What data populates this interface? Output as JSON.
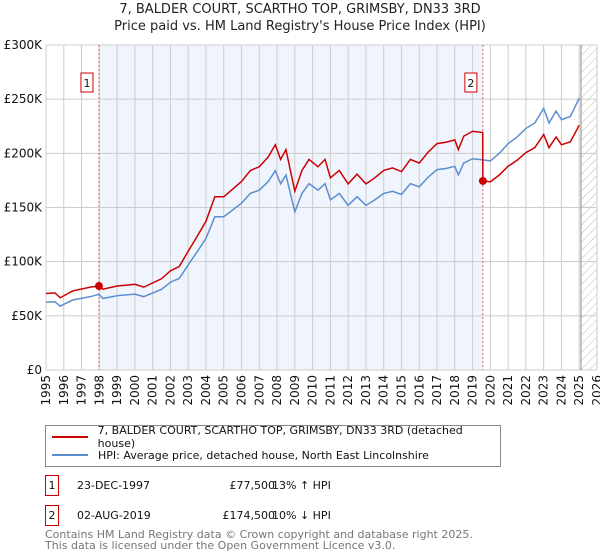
{
  "header": {
    "title": "7, BALDER COURT, SCARTHO TOP, GRIMSBY, DN33 3RD",
    "subtitle": "Price paid vs. HM Land Registry's House Price Index (HPI)"
  },
  "chart_data": {
    "type": "line",
    "title": "7, BALDER COURT, SCARTHO TOP, GRIMSBY, DN33 3RD",
    "subtitle": "Price paid vs. HM Land Registry's House Price Index (HPI)",
    "xlim": [
      1995,
      2026
    ],
    "ylim": [
      0,
      300000
    ],
    "x_ticks": [
      "1995",
      "1996",
      "1997",
      "1998",
      "1999",
      "2000",
      "2001",
      "2002",
      "2003",
      "2004",
      "2005",
      "2006",
      "2007",
      "2008",
      "2009",
      "2010",
      "2011",
      "2012",
      "2013",
      "2014",
      "2015",
      "2016",
      "2017",
      "2018",
      "2019",
      "2020",
      "2021",
      "2022",
      "2023",
      "2024",
      "2025",
      "2026"
    ],
    "y_ticks": [
      {
        "v": 0,
        "label": "£0"
      },
      {
        "v": 50000,
        "label": "£50K"
      },
      {
        "v": 100000,
        "label": "£100K"
      },
      {
        "v": 150000,
        "label": "£150K"
      },
      {
        "v": 200000,
        "label": "£200K"
      },
      {
        "v": 250000,
        "label": "£250K"
      },
      {
        "v": 300000,
        "label": "£300K"
      }
    ],
    "grid": true,
    "shaded_period": [
      1997.98,
      2019.58
    ],
    "forecast_hatch_from": 2025.1,
    "series": [
      {
        "name": "7, BALDER COURT, SCARTHO TOP, GRIMSBY, DN33 3RD (detached house)",
        "color": "#cc0000",
        "x": [
          1995,
          1995.5,
          1995.8,
          1996.5,
          1997.5,
          1997.98,
          1998.2,
          1999,
          2000,
          2000.5,
          2001.5,
          2002,
          2002.5,
          2003,
          2003.5,
          2004,
          2004.5,
          2005,
          2005.5,
          2006,
          2006.5,
          2007,
          2007.5,
          2007.9,
          2008.2,
          2008.5,
          2009,
          2009.4,
          2009.8,
          2010.3,
          2010.7,
          2011,
          2011.5,
          2012,
          2012.5,
          2013,
          2013.5,
          2014,
          2014.5,
          2015,
          2015.5,
          2016,
          2016.5,
          2017,
          2017.5,
          2018,
          2018.2,
          2018.5,
          2019,
          2019.57,
          2019.58,
          2020,
          2020.5,
          2021,
          2021.5,
          2022,
          2022.5,
          2023,
          2023.3,
          2023.7,
          2024,
          2024.5,
          2025
        ],
        "y": [
          70600,
          71200,
          66700,
          73000,
          76500,
          77500,
          74600,
          77500,
          79100,
          76500,
          84200,
          91500,
          95600,
          109600,
          123200,
          137300,
          159900,
          159900,
          166900,
          174000,
          184200,
          187600,
          196600,
          207900,
          194400,
          203400,
          165000,
          184200,
          194400,
          187600,
          194400,
          177400,
          184200,
          171800,
          180800,
          171800,
          177400,
          184200,
          186500,
          183100,
          194400,
          191000,
          201100,
          209000,
          210200,
          212400,
          203400,
          215800,
          220400,
          219200,
          174500,
          173700,
          180000,
          188100,
          193500,
          200700,
          205200,
          217400,
          205200,
          215100,
          207900,
          210600,
          225900
        ]
      },
      {
        "name": "HPI: Average price, detached house, North East Lincolnshire",
        "color": "#5b8fd0",
        "x": [
          1995,
          1995.5,
          1995.8,
          1996.5,
          1997.5,
          1997.98,
          1998.2,
          1999,
          2000,
          2000.5,
          2001.5,
          2002,
          2002.5,
          2003,
          2003.5,
          2004,
          2004.5,
          2005,
          2005.5,
          2006,
          2006.5,
          2007,
          2007.5,
          2007.9,
          2008.2,
          2008.5,
          2009,
          2009.4,
          2009.8,
          2010.3,
          2010.7,
          2011,
          2011.5,
          2012,
          2012.5,
          2013,
          2013.5,
          2014,
          2014.5,
          2015,
          2015.5,
          2016,
          2016.5,
          2017,
          2017.5,
          2018,
          2018.2,
          2018.5,
          2019,
          2019.58,
          2020,
          2020.5,
          2021,
          2021.5,
          2022,
          2022.5,
          2023,
          2023.3,
          2023.7,
          2024,
          2024.5,
          2025
        ],
        "y": [
          62500,
          63000,
          59000,
          64600,
          67700,
          70000,
          66000,
          68600,
          70000,
          67700,
          74500,
          81000,
          84600,
          97000,
          109000,
          121500,
          141500,
          141500,
          147700,
          154000,
          163000,
          166000,
          174000,
          184000,
          172000,
          180000,
          146000,
          163000,
          172000,
          166000,
          172000,
          157000,
          163000,
          152000,
          160000,
          152000,
          157000,
          163000,
          165000,
          162000,
          172000,
          169000,
          178000,
          185000,
          186000,
          188000,
          180000,
          191000,
          195000,
          194000,
          193000,
          200000,
          209000,
          215000,
          223000,
          228000,
          241500,
          228000,
          239000,
          231000,
          234000,
          251000
        ]
      }
    ],
    "annotations": [
      {
        "label": "1",
        "x": 1997.98,
        "y": 77500
      },
      {
        "label": "2",
        "x": 2019.58,
        "y": 174500
      }
    ]
  },
  "legend": {
    "items": [
      {
        "label": "7, BALDER COURT, SCARTHO TOP, GRIMSBY, DN33 3RD (detached house)",
        "color": "#cc0000"
      },
      {
        "label": "HPI: Average price, detached house, North East Lincolnshire",
        "color": "#5b8fd0"
      }
    ]
  },
  "sales": [
    {
      "num": "1",
      "date": "23-DEC-1997",
      "price": "£77,500",
      "hpi": "13% ↑ HPI"
    },
    {
      "num": "2",
      "date": "02-AUG-2019",
      "price": "£174,500",
      "hpi": "10% ↓ HPI"
    }
  ],
  "footer": {
    "line1": "Contains HM Land Registry data © Crown copyright and database right 2025.",
    "line2": "This data is licensed under the Open Government Licence v3.0."
  }
}
